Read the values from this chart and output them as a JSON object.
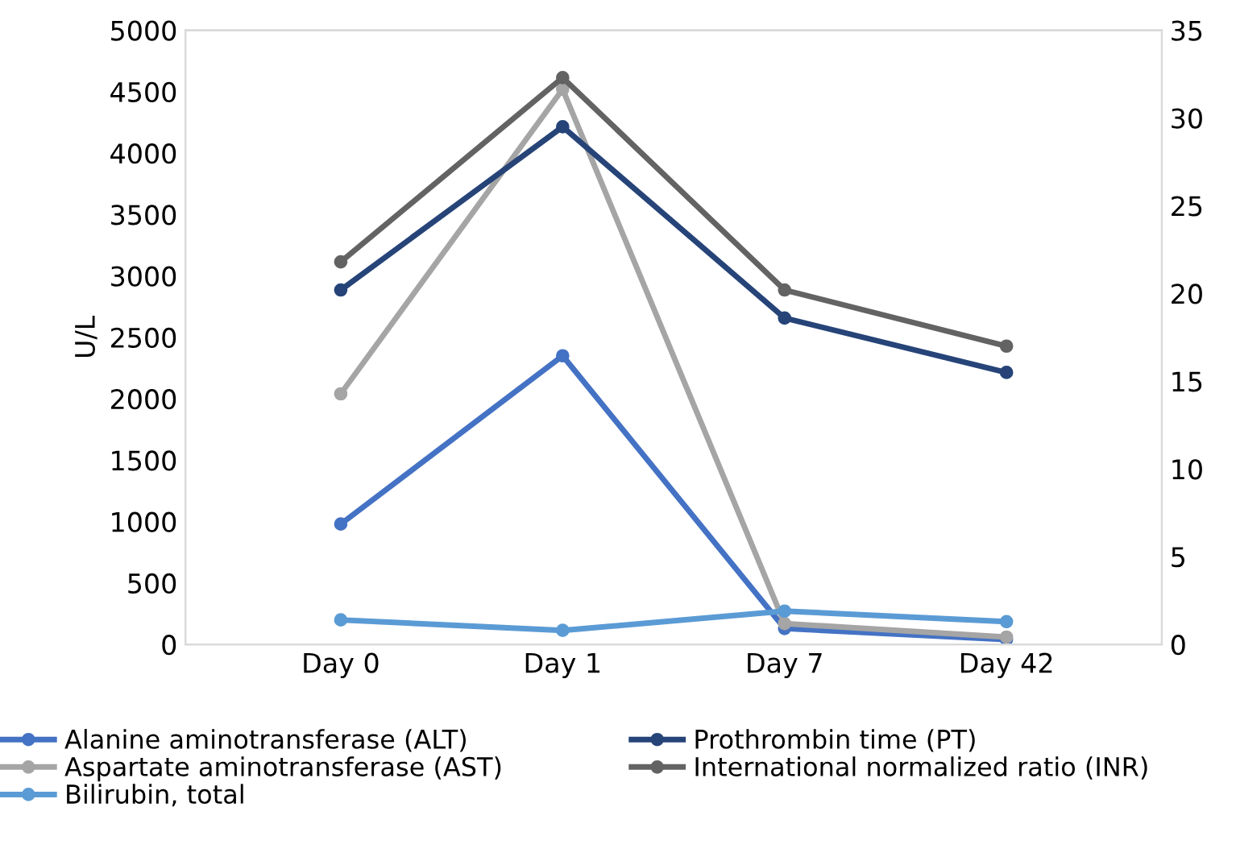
{
  "chart_data": {
    "type": "line",
    "ylabel": "U/L",
    "categories": [
      "Day 0",
      "Day 1",
      "Day 7",
      "Day 42"
    ],
    "series": [
      {
        "name": "Alanine aminotransferase (ALT)",
        "color": "#4472c4",
        "values": [
          980,
          2350,
          130,
          40
        ]
      },
      {
        "name": "Aspartate aminotransferase (AST)",
        "color": "#a5a5a5",
        "values": [
          2040,
          4520,
          170,
          60
        ]
      },
      {
        "name": "Bilirubin, total",
        "color": "#5b9bd5",
        "axis": "y2",
        "values": [
          1.4,
          0.8,
          1.9,
          1.3
        ]
      },
      {
        "name": "Prothrombin time (PT)",
        "color": "#264478",
        "axis": "y2",
        "values": [
          20.2,
          29.5,
          18.6,
          15.5
        ]
      },
      {
        "name": "International normalized ratio (INR)",
        "color": "#636363",
        "axis": "y2",
        "values": [
          21.8,
          32.3,
          20.2,
          17.0
        ]
      }
    ],
    "ylim": [
      0,
      5000
    ],
    "yticks": [
      0,
      500,
      1000,
      1500,
      2000,
      2500,
      3000,
      3500,
      4000,
      4500,
      5000
    ],
    "y2lim": [
      0,
      35
    ],
    "y2ticks": [
      0,
      5,
      10,
      15,
      20,
      25,
      30,
      35
    ],
    "marker": "circle",
    "line_style": "solid",
    "grid": false,
    "legend": "bottom"
  }
}
